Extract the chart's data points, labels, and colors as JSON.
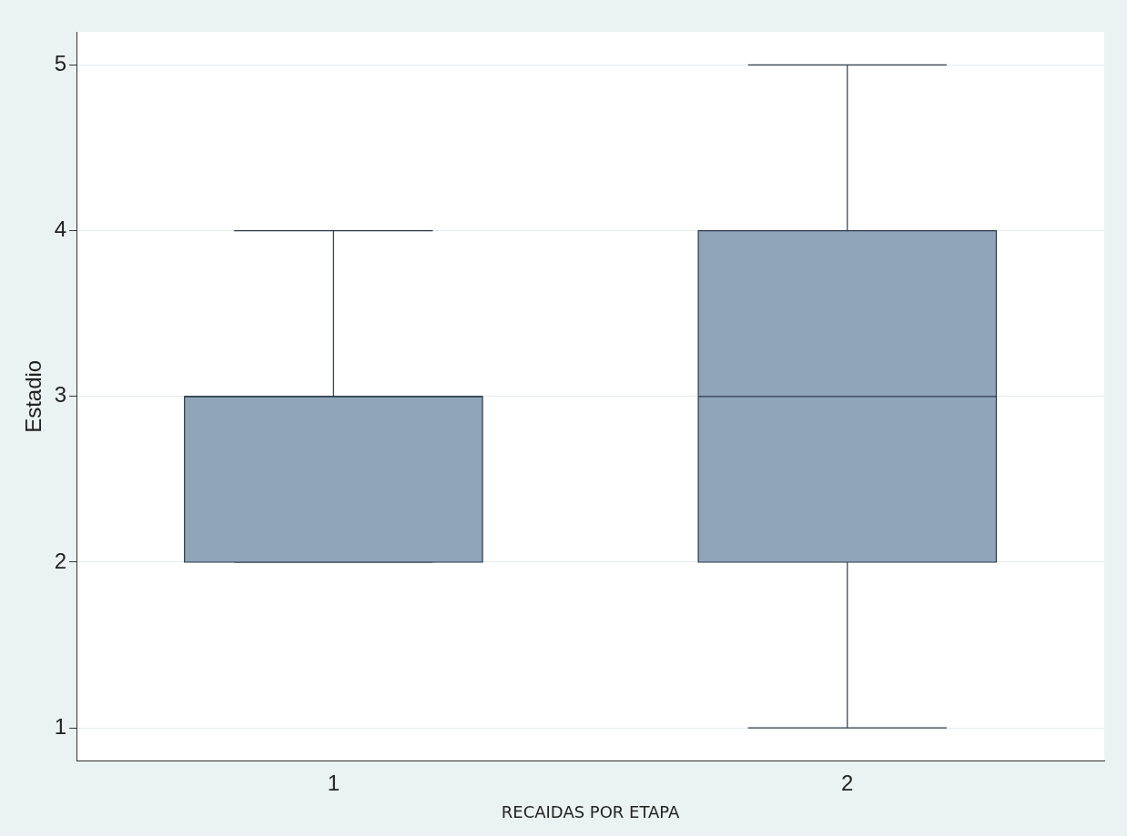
{
  "chart_data": {
    "type": "box",
    "xlabel": "RECAIDAS POR ETAPA",
    "ylabel": "Estadio",
    "categories": [
      "1",
      "2"
    ],
    "boxes": [
      {
        "low": 2,
        "q1": 2,
        "median": 3,
        "q3": 3,
        "high": 4
      },
      {
        "low": 1,
        "q1": 2,
        "median": 3,
        "q3": 4,
        "high": 5
      }
    ],
    "color": "#8ea5ba",
    "ylim": [
      0.8,
      5.2
    ],
    "yticks": [
      1,
      2,
      3,
      4,
      5
    ],
    "grid": "y"
  }
}
